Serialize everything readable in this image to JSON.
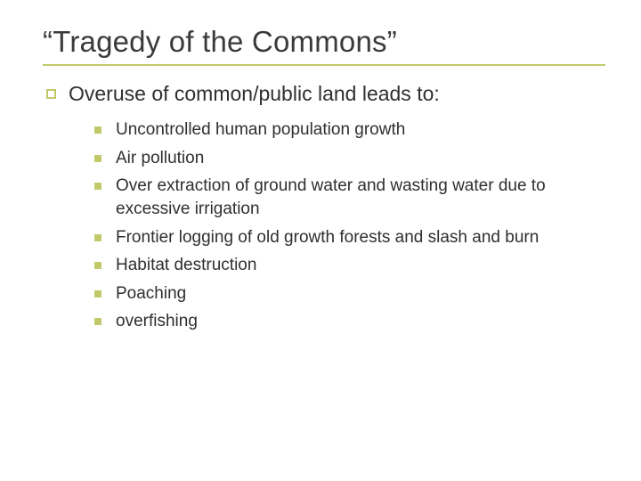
{
  "colors": {
    "accent": "#c2c96b",
    "text": "#2f2f2f",
    "title": "#3a3a3a",
    "background": "#ffffff"
  },
  "title": "“Tragedy of the Commons”",
  "level1": {
    "text": "Overuse of common/public land leads to:"
  },
  "level2_items": [
    "Uncontrolled human population growth",
    "Air pollution",
    "Over extraction of ground water and wasting water due to excessive irrigation",
    "Frontier logging of old growth forests and slash and burn",
    "Habitat destruction",
    "Poaching",
    "overfishing"
  ],
  "typography": {
    "title_fontsize": 33,
    "level1_fontsize": 23,
    "level2_fontsize": 19,
    "font_family": "Verdana"
  },
  "layout": {
    "slide_width": 720,
    "slide_height": 540,
    "rule_thickness": 2,
    "bullet_outline_size": 11,
    "bullet_solid_size": 8
  }
}
